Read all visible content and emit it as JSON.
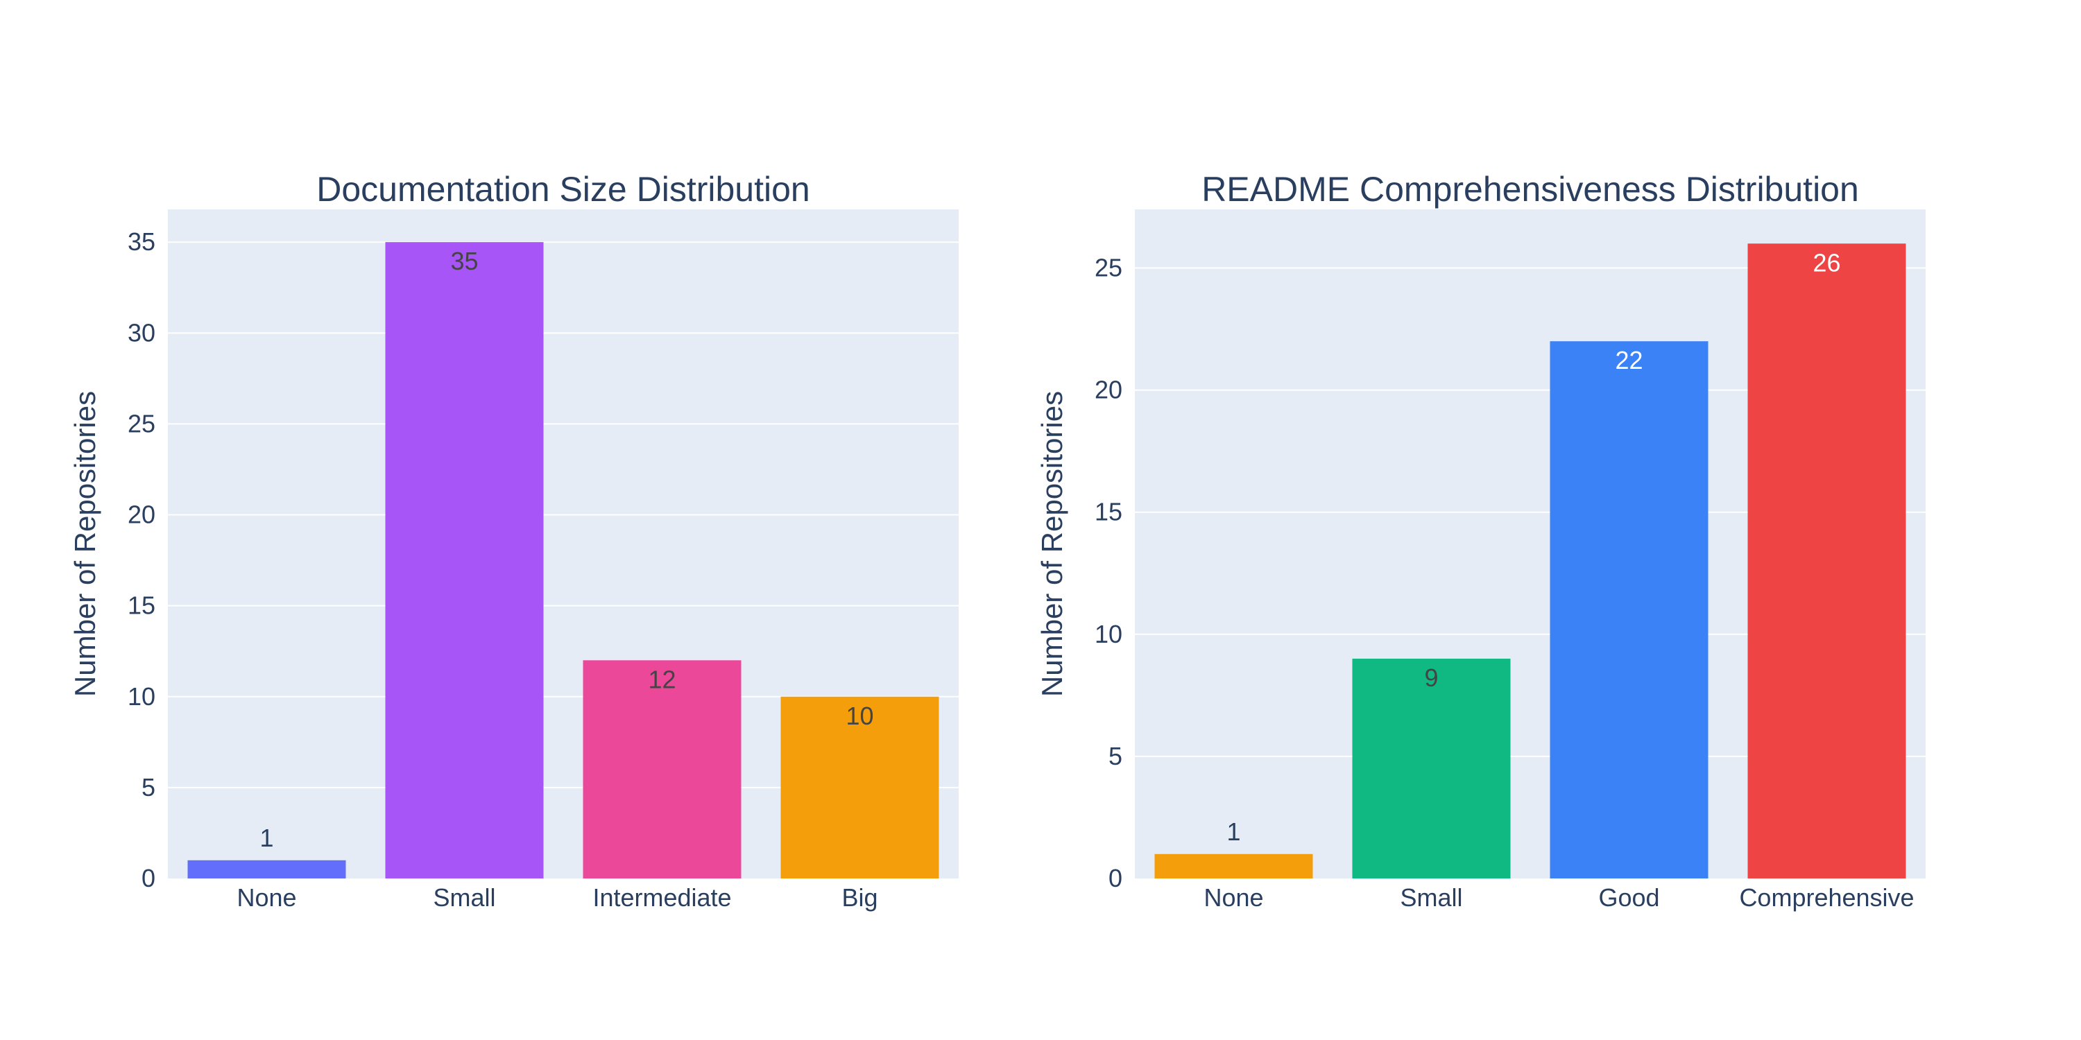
{
  "chart_data": [
    {
      "type": "bar",
      "title": "Documentation Size Distribution",
      "xlabel": "",
      "ylabel": "Number of Repositories",
      "categories": [
        "None",
        "Small",
        "Intermediate",
        "Big"
      ],
      "values": [
        1,
        35,
        12,
        10
      ],
      "colors": [
        "#636efa",
        "#a855f7",
        "#ec4899",
        "#f59e0b"
      ],
      "label_colors": [
        "#2a3f5f",
        "#444444",
        "#444444",
        "#444444"
      ],
      "label_positions": [
        "outside",
        "inside",
        "inside",
        "inside"
      ],
      "ylim": [
        0,
        36.8
      ],
      "yticks": [
        0,
        5,
        10,
        15,
        20,
        25,
        30,
        35
      ],
      "grid": true,
      "plot_background": "#e5ecf6",
      "legend": "none"
    },
    {
      "type": "bar",
      "title": "README Comprehensiveness Distribution",
      "xlabel": "",
      "ylabel": "Number of Repositories",
      "categories": [
        "None",
        "Small",
        "Good",
        "Comprehensive"
      ],
      "values": [
        1,
        9,
        22,
        26
      ],
      "colors": [
        "#f59e0b",
        "#10b981",
        "#3b82f6",
        "#ef4444"
      ],
      "label_colors": [
        "#2a3f5f",
        "#444444",
        "#ffffff",
        "#ffffff"
      ],
      "label_positions": [
        "outside",
        "inside",
        "inside",
        "inside"
      ],
      "ylim": [
        0,
        27.4
      ],
      "yticks": [
        0,
        5,
        10,
        15,
        20,
        25
      ],
      "grid": true,
      "plot_background": "#e5ecf6",
      "legend": "none"
    }
  ]
}
